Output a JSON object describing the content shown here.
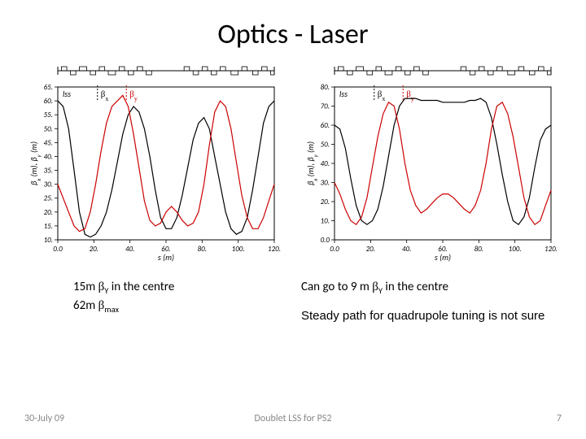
{
  "title": "Optics - Laser",
  "footer": {
    "date": "30-July 09",
    "center": "Doublet LSS for PS2",
    "page": "7"
  },
  "caption_left": {
    "line1_pre": "15m ",
    "line1_sym": "β",
    "line1_sub": "Y",
    "line1_post": " in the centre",
    "line2_pre": "62m ",
    "line2_sym": "β",
    "line2_sub": "max"
  },
  "caption_right": {
    "line1_pre": "Can go to 9 m ",
    "line1_sym": "β",
    "line1_sub": "Y",
    "line1_post": " in the centre",
    "line2": "Steady path for quadrupole tuning is not sure"
  },
  "chart_left": {
    "type": "line",
    "xlabel": "s (m)",
    "ylabel": "β_x (m), β_y (m)",
    "xlim": [
      0,
      120
    ],
    "ylim": [
      10,
      65
    ],
    "xticks": [
      0,
      20,
      40,
      60,
      80,
      100,
      120
    ],
    "yticks": [
      10,
      15,
      20,
      25,
      30,
      35,
      40,
      45,
      50,
      55,
      60,
      65
    ],
    "xtick_labels": [
      "0.0",
      "20.",
      "40.",
      "60.",
      "80.",
      "100.",
      "120."
    ],
    "ytick_labels": [
      "10.",
      "15.",
      "20.",
      "25.",
      "30.",
      "35.",
      "40.",
      "45.",
      "50.",
      "55.",
      "60.",
      "65."
    ],
    "grid_color": "#d0d0d0",
    "line_width": 1.2,
    "region_label": "lss",
    "legend": [
      {
        "label": "β_x",
        "color": "#000000",
        "x": 22
      },
      {
        "label": "β_y",
        "color": "#cc0000",
        "x": 38
      }
    ],
    "lattice_boxes": [
      {
        "x": 2,
        "w": 3,
        "h": 1,
        "dir": 1
      },
      {
        "x": 7,
        "w": 3,
        "h": 1,
        "dir": -1
      },
      {
        "x": 12,
        "w": 4,
        "h": 1,
        "dir": 1
      },
      {
        "x": 18,
        "w": 3,
        "h": 1,
        "dir": -1
      },
      {
        "x": 23,
        "w": 3,
        "h": 1,
        "dir": 1
      },
      {
        "x": 28,
        "w": 4,
        "h": 1,
        "dir": -1
      },
      {
        "x": 34,
        "w": 3,
        "h": 1,
        "dir": 1
      },
      {
        "x": 39,
        "w": 3,
        "h": 1,
        "dir": -1
      },
      {
        "x": 44,
        "w": 3,
        "h": 1,
        "dir": 1
      },
      {
        "x": 49,
        "w": 3,
        "h": 1,
        "dir": -1
      },
      {
        "x": 70,
        "w": 3,
        "h": 1,
        "dir": 1
      },
      {
        "x": 75,
        "w": 3,
        "h": 1,
        "dir": -1
      },
      {
        "x": 80,
        "w": 3,
        "h": 1,
        "dir": 1
      },
      {
        "x": 85,
        "w": 3,
        "h": 1,
        "dir": -1
      },
      {
        "x": 90,
        "w": 3,
        "h": 1,
        "dir": 1
      },
      {
        "x": 96,
        "w": 4,
        "h": 1,
        "dir": -1
      },
      {
        "x": 102,
        "w": 3,
        "h": 1,
        "dir": 1
      },
      {
        "x": 108,
        "w": 3,
        "h": 1,
        "dir": -1
      },
      {
        "x": 113,
        "w": 3,
        "h": 1,
        "dir": 1
      },
      {
        "x": 118,
        "w": 2,
        "h": 1,
        "dir": -1
      }
    ],
    "series": [
      {
        "name": "beta_x",
        "color": "#000000",
        "points": [
          [
            0,
            60
          ],
          [
            3,
            58
          ],
          [
            6,
            50
          ],
          [
            9,
            35
          ],
          [
            12,
            20
          ],
          [
            15,
            12
          ],
          [
            18,
            11
          ],
          [
            21,
            12
          ],
          [
            24,
            15
          ],
          [
            27,
            20
          ],
          [
            30,
            28
          ],
          [
            33,
            38
          ],
          [
            36,
            48
          ],
          [
            39,
            55
          ],
          [
            42,
            58
          ],
          [
            45,
            56
          ],
          [
            48,
            50
          ],
          [
            51,
            40
          ],
          [
            54,
            28
          ],
          [
            57,
            18
          ],
          [
            60,
            14
          ],
          [
            63,
            14
          ],
          [
            66,
            18
          ],
          [
            69,
            26
          ],
          [
            72,
            36
          ],
          [
            75,
            46
          ],
          [
            78,
            52
          ],
          [
            81,
            54
          ],
          [
            84,
            50
          ],
          [
            87,
            40
          ],
          [
            90,
            30
          ],
          [
            93,
            20
          ],
          [
            96,
            14
          ],
          [
            99,
            12
          ],
          [
            102,
            13
          ],
          [
            105,
            18
          ],
          [
            108,
            28
          ],
          [
            111,
            40
          ],
          [
            114,
            52
          ],
          [
            117,
            58
          ],
          [
            120,
            60
          ]
        ]
      },
      {
        "name": "beta_y",
        "color": "#cc0000",
        "points": [
          [
            0,
            30
          ],
          [
            3,
            25
          ],
          [
            6,
            20
          ],
          [
            9,
            15
          ],
          [
            12,
            13
          ],
          [
            15,
            14
          ],
          [
            18,
            20
          ],
          [
            21,
            30
          ],
          [
            24,
            42
          ],
          [
            27,
            52
          ],
          [
            30,
            58
          ],
          [
            33,
            60
          ],
          [
            36,
            62
          ],
          [
            39,
            58
          ],
          [
            42,
            48
          ],
          [
            45,
            36
          ],
          [
            48,
            24
          ],
          [
            51,
            17
          ],
          [
            54,
            15
          ],
          [
            57,
            16
          ],
          [
            60,
            20
          ],
          [
            63,
            22
          ],
          [
            66,
            20
          ],
          [
            69,
            17
          ],
          [
            72,
            15
          ],
          [
            75,
            16
          ],
          [
            78,
            20
          ],
          [
            81,
            30
          ],
          [
            84,
            44
          ],
          [
            87,
            56
          ],
          [
            90,
            60
          ],
          [
            93,
            58
          ],
          [
            96,
            50
          ],
          [
            99,
            38
          ],
          [
            102,
            26
          ],
          [
            105,
            18
          ],
          [
            108,
            14
          ],
          [
            111,
            14
          ],
          [
            114,
            18
          ],
          [
            117,
            24
          ],
          [
            120,
            30
          ]
        ]
      }
    ]
  },
  "chart_right": {
    "type": "line",
    "xlabel": "s (m)",
    "ylabel": "β_x (m), β_y (m)",
    "xlim": [
      0,
      120
    ],
    "ylim": [
      0,
      80
    ],
    "xticks": [
      0,
      20,
      40,
      60,
      80,
      100,
      120
    ],
    "yticks": [
      0,
      10,
      20,
      30,
      40,
      50,
      60,
      70,
      80
    ],
    "xtick_labels": [
      "0.0",
      "20.",
      "40.",
      "60.",
      "80.",
      "100.",
      "120."
    ],
    "ytick_labels": [
      "0.0",
      "10.",
      "20.",
      "30.",
      "40.",
      "50.",
      "60.",
      "70.",
      "80."
    ],
    "grid_color": "#d0d0d0",
    "line_width": 1.2,
    "region_label": "lss",
    "legend": [
      {
        "label": "β_x",
        "color": "#000000",
        "x": 22
      },
      {
        "label": "β_y",
        "color": "#cc0000",
        "x": 38
      }
    ],
    "lattice_boxes": [
      {
        "x": 2,
        "w": 3,
        "h": 1,
        "dir": 1
      },
      {
        "x": 7,
        "w": 3,
        "h": 1,
        "dir": -1
      },
      {
        "x": 12,
        "w": 4,
        "h": 1,
        "dir": 1
      },
      {
        "x": 18,
        "w": 3,
        "h": 1,
        "dir": -1
      },
      {
        "x": 23,
        "w": 3,
        "h": 1,
        "dir": 1
      },
      {
        "x": 28,
        "w": 4,
        "h": 1,
        "dir": -1
      },
      {
        "x": 34,
        "w": 3,
        "h": 1,
        "dir": 1
      },
      {
        "x": 39,
        "w": 3,
        "h": 1,
        "dir": -1
      },
      {
        "x": 44,
        "w": 3,
        "h": 1,
        "dir": 1
      },
      {
        "x": 49,
        "w": 3,
        "h": 1,
        "dir": -1
      },
      {
        "x": 70,
        "w": 3,
        "h": 1,
        "dir": 1
      },
      {
        "x": 75,
        "w": 3,
        "h": 1,
        "dir": -1
      },
      {
        "x": 80,
        "w": 3,
        "h": 1,
        "dir": 1
      },
      {
        "x": 85,
        "w": 3,
        "h": 1,
        "dir": -1
      },
      {
        "x": 90,
        "w": 3,
        "h": 1,
        "dir": 1
      },
      {
        "x": 96,
        "w": 4,
        "h": 1,
        "dir": -1
      },
      {
        "x": 102,
        "w": 3,
        "h": 1,
        "dir": 1
      },
      {
        "x": 108,
        "w": 3,
        "h": 1,
        "dir": -1
      },
      {
        "x": 113,
        "w": 3,
        "h": 1,
        "dir": 1
      },
      {
        "x": 118,
        "w": 2,
        "h": 1,
        "dir": -1
      }
    ],
    "series": [
      {
        "name": "beta_x",
        "color": "#000000",
        "points": [
          [
            0,
            60
          ],
          [
            3,
            58
          ],
          [
            6,
            48
          ],
          [
            9,
            32
          ],
          [
            12,
            18
          ],
          [
            15,
            10
          ],
          [
            18,
            8
          ],
          [
            21,
            10
          ],
          [
            24,
            16
          ],
          [
            27,
            28
          ],
          [
            30,
            44
          ],
          [
            33,
            60
          ],
          [
            36,
            70
          ],
          [
            39,
            74
          ],
          [
            42,
            74
          ],
          [
            45,
            74
          ],
          [
            48,
            73
          ],
          [
            51,
            73
          ],
          [
            54,
            73
          ],
          [
            57,
            73
          ],
          [
            60,
            72
          ],
          [
            63,
            72
          ],
          [
            66,
            72
          ],
          [
            69,
            72
          ],
          [
            72,
            72
          ],
          [
            75,
            73
          ],
          [
            78,
            73
          ],
          [
            81,
            74
          ],
          [
            84,
            72
          ],
          [
            87,
            64
          ],
          [
            90,
            50
          ],
          [
            93,
            34
          ],
          [
            96,
            20
          ],
          [
            99,
            10
          ],
          [
            102,
            8
          ],
          [
            105,
            12
          ],
          [
            108,
            22
          ],
          [
            111,
            38
          ],
          [
            114,
            52
          ],
          [
            117,
            58
          ],
          [
            120,
            60
          ]
        ]
      },
      {
        "name": "beta_y",
        "color": "#cc0000",
        "points": [
          [
            0,
            30
          ],
          [
            3,
            24
          ],
          [
            6,
            16
          ],
          [
            9,
            10
          ],
          [
            12,
            8
          ],
          [
            15,
            12
          ],
          [
            18,
            22
          ],
          [
            21,
            38
          ],
          [
            24,
            54
          ],
          [
            27,
            66
          ],
          [
            30,
            72
          ],
          [
            33,
            70
          ],
          [
            36,
            58
          ],
          [
            39,
            40
          ],
          [
            42,
            26
          ],
          [
            45,
            18
          ],
          [
            48,
            14
          ],
          [
            51,
            16
          ],
          [
            54,
            19
          ],
          [
            57,
            22
          ],
          [
            60,
            24
          ],
          [
            63,
            24
          ],
          [
            66,
            22
          ],
          [
            69,
            19
          ],
          [
            72,
            16
          ],
          [
            75,
            14
          ],
          [
            78,
            18
          ],
          [
            81,
            26
          ],
          [
            84,
            40
          ],
          [
            87,
            58
          ],
          [
            90,
            70
          ],
          [
            93,
            72
          ],
          [
            96,
            66
          ],
          [
            99,
            54
          ],
          [
            102,
            38
          ],
          [
            105,
            22
          ],
          [
            108,
            12
          ],
          [
            111,
            8
          ],
          [
            114,
            10
          ],
          [
            117,
            18
          ],
          [
            120,
            26
          ]
        ]
      }
    ]
  }
}
